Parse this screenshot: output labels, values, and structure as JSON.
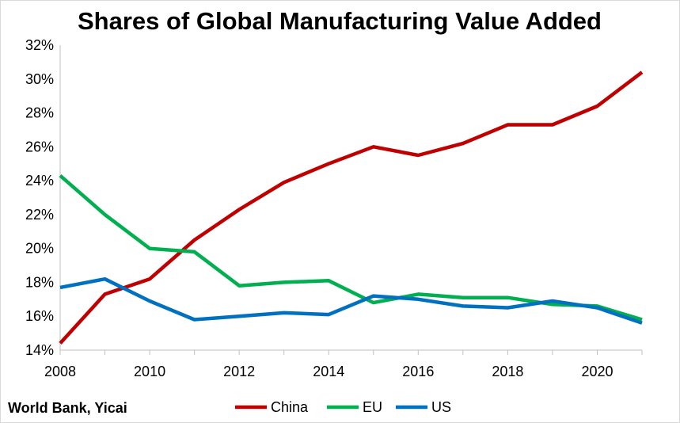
{
  "chart_data": {
    "type": "line",
    "title": "Shares of Global Manufacturing Value Added",
    "xlabel": "",
    "ylabel": "",
    "x": [
      2008,
      2009,
      2010,
      2011,
      2012,
      2013,
      2014,
      2015,
      2016,
      2017,
      2018,
      2019,
      2020,
      2021
    ],
    "xticks": [
      "2008",
      "2010",
      "2012",
      "2014",
      "2016",
      "2018",
      "2020"
    ],
    "xlim": [
      2008,
      2021
    ],
    "yticks": [
      "14%",
      "16%",
      "18%",
      "20%",
      "22%",
      "24%",
      "26%",
      "28%",
      "30%",
      "32%"
    ],
    "ylim": [
      14,
      32
    ],
    "yunit": "%",
    "grid": false,
    "legend_position": "bottom",
    "series": [
      {
        "name": "China",
        "color": "#c00000",
        "values": [
          14.4,
          17.3,
          18.2,
          20.5,
          22.3,
          23.9,
          25.0,
          26.0,
          25.5,
          26.2,
          27.3,
          27.3,
          28.4,
          30.4
        ]
      },
      {
        "name": "EU",
        "color": "#00b050",
        "values": [
          24.3,
          22.0,
          20.0,
          19.8,
          17.8,
          18.0,
          18.1,
          16.8,
          17.3,
          17.1,
          17.1,
          16.7,
          16.6,
          15.8
        ]
      },
      {
        "name": "US",
        "color": "#0070c0",
        "values": [
          17.7,
          18.2,
          16.9,
          15.8,
          16.0,
          16.2,
          16.1,
          17.2,
          17.0,
          16.6,
          16.5,
          16.9,
          16.5,
          15.6
        ]
      }
    ]
  },
  "source_note": "World Bank, Yicai"
}
